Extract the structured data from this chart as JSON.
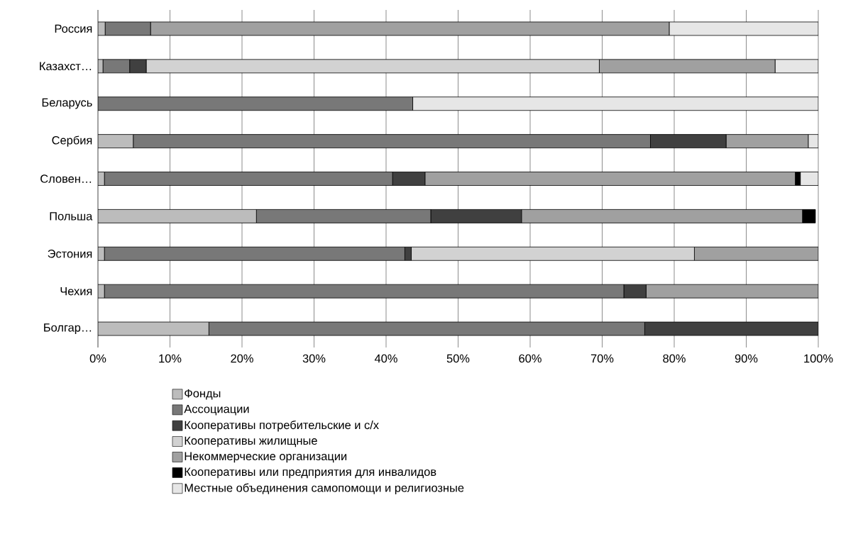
{
  "chart_data": {
    "type": "bar",
    "orientation": "horizontal",
    "stacked": true,
    "categories": [
      "Россия",
      "Казахст…",
      "Беларусь",
      "Сербия",
      "Словен…",
      "Польша",
      "Эстония",
      "Чехия",
      "Болгар…"
    ],
    "series": [
      {
        "name": "Фонды",
        "color": "#bcbcbc",
        "values": [
          1.0,
          0.7,
          0,
          4.9,
          0.9,
          22.0,
          0.9,
          0.9,
          15.4
        ]
      },
      {
        "name": "Ассоциации",
        "color": "#787878",
        "values": [
          6.3,
          3.7,
          43.7,
          71.8,
          40.0,
          24.2,
          41.7,
          72.1,
          60.5
        ]
      },
      {
        "name": "Кооперативы потребительские и с/х",
        "color": "#404040",
        "values": [
          0,
          2.3,
          0,
          10.5,
          4.5,
          12.6,
          0.9,
          3.1,
          24.1
        ]
      },
      {
        "name": "Кооперативы жилищные",
        "color": "#d2d2d2",
        "values": [
          0,
          62.9,
          0,
          0,
          0,
          0,
          39.3,
          0,
          0
        ]
      },
      {
        "name": "Некоммерческие организации",
        "color": "#a0a0a0",
        "values": [
          72.0,
          24.4,
          0,
          11.4,
          51.4,
          39.0,
          17.2,
          23.9,
          0
        ]
      },
      {
        "name": "Кооперативы или предприятия  для инвалидов",
        "color": "#000000",
        "values": [
          0,
          0,
          0,
          0,
          0.7,
          1.8,
          0,
          0,
          0
        ]
      },
      {
        "name": "Местные  объединения самопомощи и религиозные",
        "color": "#e6e6e6",
        "values": [
          20.7,
          6.0,
          56.3,
          1.4,
          2.5,
          0,
          0,
          0,
          0
        ]
      }
    ],
    "xlim": [
      0,
      100
    ],
    "xticks": [
      {
        "value": 0,
        "label": "0%"
      },
      {
        "value": 10,
        "label": "10%"
      },
      {
        "value": 20,
        "label": "20%"
      },
      {
        "value": 30,
        "label": "30%"
      },
      {
        "value": 40,
        "label": "40%"
      },
      {
        "value": 50,
        "label": "50%"
      },
      {
        "value": 60,
        "label": "60%"
      },
      {
        "value": 70,
        "label": "70%"
      },
      {
        "value": 80,
        "label": "80%"
      },
      {
        "value": 90,
        "label": "90%"
      },
      {
        "value": 100,
        "label": "100%"
      }
    ],
    "grid": "x",
    "legend": "bottom"
  }
}
